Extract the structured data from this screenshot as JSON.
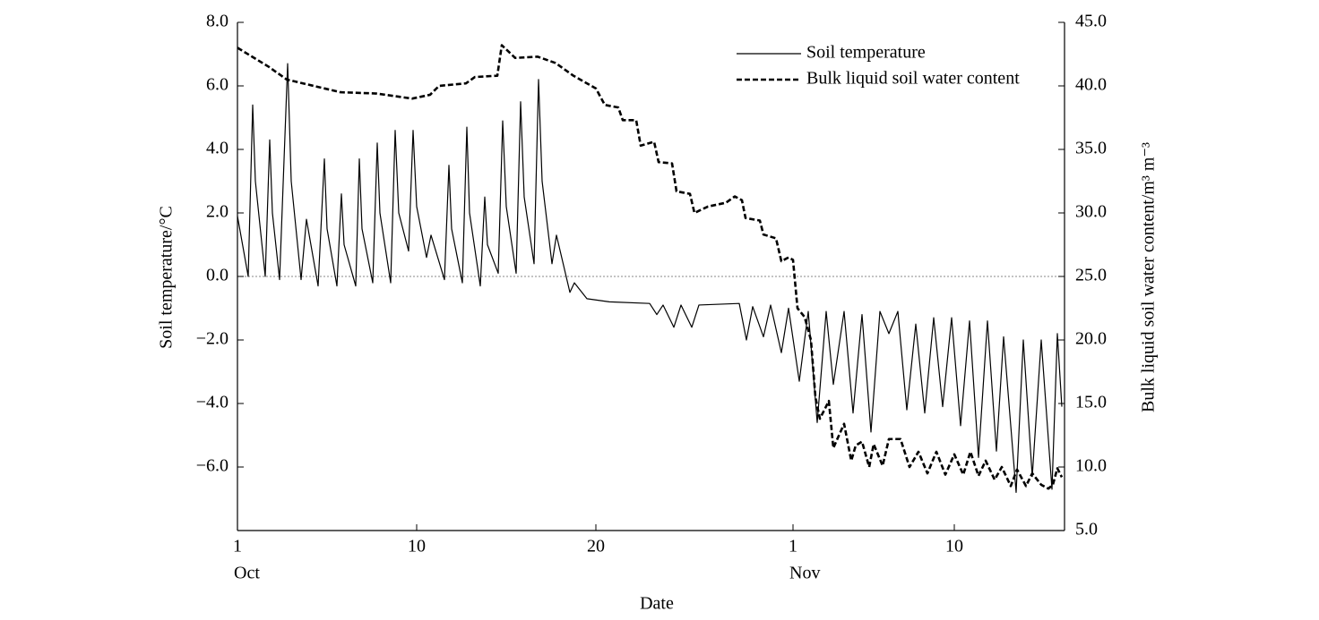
{
  "chart_data": {
    "type": "line",
    "xlabel": "Date",
    "ylabel": "Soil temperature/°C",
    "y2label": "Bulk liquid soil water content/m³ m⁻³",
    "xlim": [
      0,
      46.15
    ],
    "xticks": [
      {
        "value": 0,
        "label": "1"
      },
      {
        "value": 10,
        "label": "10"
      },
      {
        "value": 20,
        "label": "20"
      },
      {
        "value": 31,
        "label": "1"
      },
      {
        "value": 40,
        "label": "10"
      }
    ],
    "month_labels": [
      {
        "value": 0,
        "label": "Oct"
      },
      {
        "value": 31,
        "label": "Nov"
      }
    ],
    "ylim": [
      -8,
      8
    ],
    "yticks": [
      {
        "value": -6,
        "label": "−6.0"
      },
      {
        "value": -4,
        "label": "−4.0"
      },
      {
        "value": -2,
        "label": "−2.0"
      },
      {
        "value": 0,
        "label": "0.0"
      },
      {
        "value": 2,
        "label": "2.0"
      },
      {
        "value": 4,
        "label": "4.0"
      },
      {
        "value": 6,
        "label": "6.0"
      },
      {
        "value": 8,
        "label": "8.0"
      }
    ],
    "y2lim": [
      5,
      45
    ],
    "y2ticks": [
      {
        "value": 5,
        "label": "5.0"
      },
      {
        "value": 10,
        "label": "10.0"
      },
      {
        "value": 15,
        "label": "15.0"
      },
      {
        "value": 20,
        "label": "20.0"
      },
      {
        "value": 25,
        "label": "25.0"
      },
      {
        "value": 30,
        "label": "30.0"
      },
      {
        "value": 35,
        "label": "35.0"
      },
      {
        "value": 40,
        "label": "40.0"
      },
      {
        "value": 45,
        "label": "45.0"
      }
    ],
    "reference_line": 0,
    "legend": "upper right",
    "series": [
      {
        "name": "Soil temperature",
        "color": "#000000",
        "dash": "solid",
        "x": [
          0,
          0.6,
          0.85,
          1.0,
          1.55,
          1.8,
          1.95,
          2.35,
          2.8,
          3.0,
          3.55,
          3.85,
          4.5,
          4.85,
          5.0,
          5.55,
          5.8,
          5.95,
          6.6,
          6.8,
          6.95,
          7.55,
          7.8,
          7.95,
          8.55,
          8.8,
          9.0,
          9.55,
          9.8,
          10.0,
          10.55,
          10.8,
          11.55,
          11.8,
          11.95,
          12.55,
          12.8,
          12.95,
          13.55,
          13.8,
          13.95,
          14.55,
          14.8,
          15.0,
          15.55,
          15.8,
          16.0,
          16.55,
          16.8,
          17.0,
          17.55,
          17.8,
          18.55,
          18.8,
          19.5,
          20.75,
          23.0,
          23.4,
          23.75,
          24.35,
          24.75,
          25.35,
          25.75,
          28.0,
          28.4,
          28.75,
          29.35,
          29.75,
          30.35,
          30.75,
          31.35,
          31.85,
          32.35,
          32.85,
          33.25,
          33.85,
          34.35,
          34.85,
          35.35,
          35.85,
          36.35,
          36.85,
          37.35,
          37.85,
          38.35,
          38.85,
          39.35,
          39.85,
          40.35,
          40.85,
          41.35,
          41.85,
          42.35,
          42.75,
          43.45,
          43.85,
          44.35,
          44.85,
          45.45,
          45.75,
          46.0
        ],
        "values": [
          1.9,
          0.0,
          5.4,
          3.0,
          0.0,
          4.3,
          2.0,
          -0.1,
          6.7,
          3.0,
          -0.1,
          1.8,
          -0.3,
          3.7,
          1.5,
          -0.3,
          2.6,
          1.0,
          -0.3,
          3.7,
          1.5,
          -0.2,
          4.2,
          2.0,
          -0.2,
          4.6,
          2.0,
          0.8,
          4.6,
          2.2,
          0.6,
          1.3,
          -0.1,
          3.5,
          1.5,
          -0.2,
          4.7,
          2.0,
          -0.3,
          2.5,
          1.0,
          0.1,
          4.9,
          2.2,
          0.1,
          5.5,
          2.5,
          0.4,
          6.2,
          3.0,
          0.4,
          1.3,
          -0.5,
          -0.2,
          -0.7,
          -0.8,
          -0.85,
          -1.2,
          -0.9,
          -1.6,
          -0.9,
          -1.6,
          -0.9,
          -0.85,
          -2.0,
          -0.95,
          -1.9,
          -0.9,
          -2.4,
          -1.0,
          -3.3,
          -1.1,
          -4.6,
          -1.1,
          -3.4,
          -1.1,
          -4.3,
          -1.2,
          -4.9,
          -1.1,
          -1.8,
          -1.1,
          -4.2,
          -1.5,
          -4.3,
          -1.3,
          -4.1,
          -1.3,
          -4.7,
          -1.4,
          -5.7,
          -1.4,
          -5.5,
          -1.9,
          -6.8,
          -2.0,
          -6.3,
          -2.0,
          -6.7,
          -1.8,
          -4.1
        ]
      },
      {
        "name": "Bulk liquid soil water content",
        "color": "#000000",
        "dash": "dashed",
        "axis": "y2",
        "x": [
          0,
          1.75,
          2.75,
          4.25,
          5.75,
          7.75,
          9.75,
          10.75,
          11.25,
          12.75,
          13.25,
          14.5,
          14.75,
          15.5,
          16.75,
          17.75,
          18.75,
          20.0,
          20.5,
          21.25,
          21.5,
          22.25,
          22.5,
          23.25,
          23.5,
          24.25,
          24.5,
          25.25,
          25.5,
          26.25,
          27.25,
          27.75,
          28.15,
          28.35,
          29.15,
          29.35,
          30.05,
          30.35,
          30.75,
          31.0,
          31.25,
          31.65,
          32.0,
          32.25,
          32.5,
          33.0,
          33.25,
          33.85,
          34.25,
          34.5,
          34.85,
          35.25,
          35.5,
          36.0,
          36.35,
          37.0,
          37.5,
          38.0,
          38.5,
          39.0,
          39.5,
          40.0,
          40.5,
          40.9,
          41.35,
          41.75,
          42.25,
          42.65,
          43.15,
          43.5,
          44.0,
          44.35,
          44.85,
          45.25,
          45.5,
          45.75,
          46.0
        ],
        "values": [
          43.0,
          41.5,
          40.5,
          40.0,
          39.5,
          39.4,
          39.0,
          39.3,
          40.0,
          40.2,
          40.7,
          40.8,
          43.2,
          42.2,
          42.3,
          41.8,
          40.8,
          39.8,
          38.5,
          38.3,
          37.3,
          37.3,
          35.3,
          35.6,
          34.0,
          33.9,
          31.7,
          31.5,
          30.0,
          30.5,
          30.8,
          31.3,
          31.0,
          29.6,
          29.4,
          28.3,
          28.0,
          26.2,
          26.5,
          26.3,
          22.5,
          21.8,
          20.0,
          15.5,
          13.8,
          15.2,
          11.5,
          13.4,
          10.5,
          11.7,
          12.0,
          10.0,
          11.8,
          10.1,
          12.2,
          12.2,
          10.0,
          11.2,
          9.5,
          11.2,
          9.4,
          11.0,
          9.4,
          11.2,
          9.3,
          10.5,
          9.0,
          10.0,
          8.5,
          9.8,
          8.5,
          9.5,
          8.6,
          8.3,
          8.6,
          9.9,
          9.2
        ]
      }
    ]
  }
}
